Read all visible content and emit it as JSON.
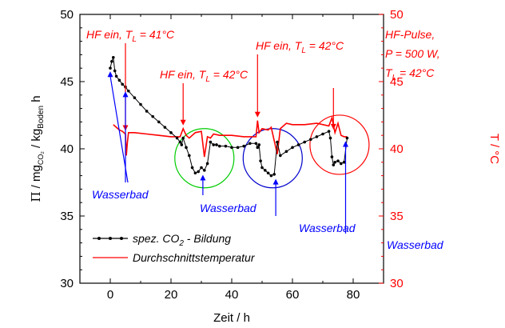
{
  "chart_data": {
    "type": "line",
    "xlabel": "Zeit / h",
    "ylabel_left": {
      "pi": "Π",
      "slash1": " / ",
      "mg": "mg",
      "mg_sub": "CO₂",
      "slash2": " / kg",
      "kg_sub": "Boden",
      "h": " h"
    },
    "ylabel_right": "T / °C",
    "xlim": [
      -10,
      90
    ],
    "ylim_left": [
      30,
      50
    ],
    "ylim_right": [
      30,
      50
    ],
    "x_ticks": [
      "0",
      "20",
      "40",
      "60",
      "80"
    ],
    "y_ticks_left": [
      "30",
      "35",
      "40",
      "45",
      "50"
    ],
    "y_ticks_right": [
      "30",
      "35",
      "40",
      "45",
      "50"
    ],
    "colors": {
      "co2": "#000000",
      "temperature": "#ff0000",
      "right_axis": "#ff0000",
      "wasserbad": "#0000ff",
      "circle_green": "#00cc00",
      "circle_blue": "#0000cc",
      "circle_red": "#ff0000"
    },
    "legend": {
      "position": "bottom-left",
      "co2": {
        "prefix": "spez. CO",
        "sub": "2",
        "suffix": " - Bildung"
      },
      "temperature": "Durchschnittstemperatur"
    },
    "series": [
      {
        "key": "co2",
        "axis": "left",
        "x": [
          0,
          0.5,
          1,
          1.5,
          2,
          3,
          4,
          5,
          6,
          8,
          10,
          12,
          14,
          16,
          18,
          20,
          22,
          23,
          23.5,
          24,
          25,
          26,
          27,
          28,
          29,
          30,
          31,
          32,
          33,
          34,
          35,
          36,
          38,
          40,
          42,
          44,
          46,
          48,
          48.5,
          49,
          49.5,
          50,
          51,
          52,
          53,
          54,
          55,
          56,
          58,
          60,
          62,
          64,
          66,
          68,
          70,
          72,
          72.5,
          73,
          73.5,
          74,
          75,
          76,
          77,
          78
        ],
        "y": [
          46,
          46.5,
          46.8,
          45.8,
          45.4,
          45.1,
          44.8,
          44.6,
          44.3,
          43.8,
          43.3,
          42.8,
          42.4,
          42,
          41.6,
          41.2,
          40.8,
          40.5,
          40.3,
          40.8,
          40.1,
          39.5,
          38.6,
          38.2,
          38.3,
          38.6,
          38.4,
          38.9,
          40.5,
          40.3,
          40.3,
          40.2,
          40.2,
          40.1,
          40.1,
          40.2,
          40.4,
          40.4,
          40.1,
          40.3,
          39.1,
          38.6,
          38.4,
          38.2,
          38.0,
          38.1,
          40.5,
          39.5,
          39.8,
          40.1,
          40.3,
          40.5,
          40.7,
          40.9,
          41.1,
          41.3,
          40.8,
          39.4,
          38.8,
          39.0,
          39.1,
          38.9,
          39.0,
          40.8
        ]
      },
      {
        "key": "temperature",
        "axis": "right",
        "x": [
          1,
          2,
          3,
          4,
          5,
          5.3,
          5.6,
          6,
          8,
          12,
          16,
          20,
          23,
          24,
          25,
          26,
          28,
          30,
          31,
          32,
          33,
          34,
          36,
          40,
          44,
          48,
          48.5,
          49,
          50,
          52,
          53,
          54,
          55,
          56,
          58,
          60,
          64,
          68,
          72,
          73,
          74,
          75,
          76,
          77,
          78
        ],
        "y": [
          41.8,
          41.6,
          41.4,
          41.3,
          41.1,
          39.5,
          40.4,
          41.2,
          41.2,
          41.1,
          41.0,
          40.9,
          40.9,
          41.5,
          41.0,
          40.8,
          41.2,
          41.3,
          39.4,
          40.9,
          40.8,
          41.1,
          41.0,
          41.0,
          40.9,
          40.9,
          42.1,
          41.2,
          41.5,
          41.4,
          41.6,
          40.6,
          39.6,
          41.5,
          41.9,
          41.8,
          41.8,
          41.9,
          41.7,
          42.3,
          41.2,
          41.9,
          41.0,
          40.9,
          40.9
        ]
      }
    ],
    "annotations": [
      {
        "key": "a1",
        "pre": "HF ein, T",
        "sub": "L",
        "post": " = 41°C"
      },
      {
        "key": "a2",
        "pre": "HF ein, T",
        "sub": "L",
        "post": " = 42°C"
      },
      {
        "key": "a3",
        "pre": "HF ein, T",
        "sub": "L",
        "post": " = 42°C"
      },
      {
        "key": "a4_line1",
        "text": "HF-Pulse,"
      },
      {
        "key": "a4_line2",
        "text": "P = 500 W,"
      },
      {
        "key": "a4_line3",
        "pre": "T",
        "sub": "L",
        "post": " = 42°C"
      }
    ],
    "hf_events_x": [
      5,
      24,
      48.5,
      73.5
    ],
    "wasserbad": {
      "label": "Wasserbad",
      "events": [
        {
          "x": 0,
          "y": 46
        },
        {
          "x": 5,
          "y": 44.5
        },
        {
          "x": 30.5,
          "y": 38.3
        },
        {
          "x": 54.5,
          "y": 38.0
        },
        {
          "x": 77.5,
          "y": 40.8
        }
      ]
    },
    "highlight_circles": [
      {
        "x": 31,
        "y": 39.3,
        "color_key": "circle_green"
      },
      {
        "x": 53.5,
        "y": 39.3,
        "color_key": "circle_blue"
      },
      {
        "x": 75.5,
        "y": 40.3,
        "color_key": "circle_red"
      }
    ]
  }
}
